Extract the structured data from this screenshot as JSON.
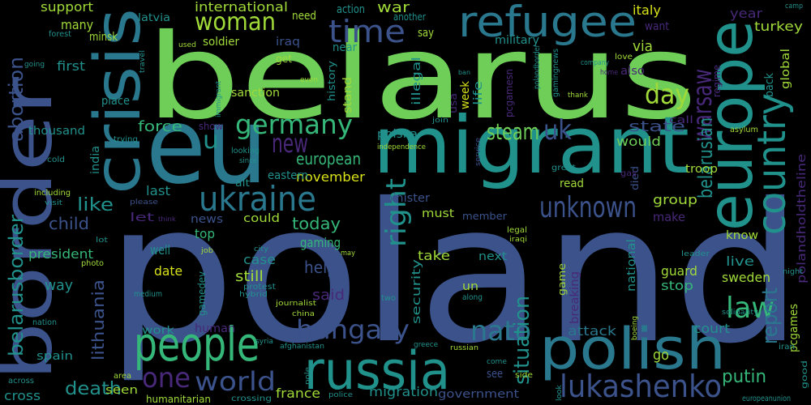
{
  "word_cloud": {
    "words": [
      "poland",
      "belarus",
      "migrant",
      "eu",
      "border",
      "crisis",
      "europe",
      "country",
      "refugee",
      "woman",
      "time",
      "germany",
      "new",
      "u",
      "ukraine",
      "people",
      "russia",
      "polish",
      "hungary",
      "world",
      "one",
      "nato",
      "lukashenko",
      "unknown",
      "day",
      "warsaw",
      "uk",
      "steam",
      "belarusian",
      "law",
      "report",
      "right",
      "situation",
      "belarusborder",
      "abortion",
      "lithuania",
      "putin",
      "death",
      "european",
      "like",
      "child",
      "today",
      "help",
      "said",
      "force",
      "state",
      "would",
      "group",
      "make",
      "guard",
      "stop",
      "sweden",
      "live",
      "know",
      "court",
      "attack",
      "go",
      "date",
      "still",
      "case",
      "gaming",
      "top",
      "news",
      "let",
      "last",
      "could",
      "minister",
      "must",
      "member",
      "november",
      "eastern",
      "well",
      "president",
      "way",
      "thousand",
      "place",
      "first",
      "many",
      "support",
      "minsk",
      "latvia",
      "international",
      "need",
      "action",
      "war",
      "another",
      "say",
      "soldier",
      "iraq",
      "near",
      "get",
      "sanction",
      "military",
      "italy",
      "turkey",
      "want",
      "year",
      "via",
      "also",
      "back",
      "global",
      "polandholdtheline",
      "pcgames",
      "good",
      "europeanunion",
      "iran",
      "asylum",
      "troop",
      "call",
      "died",
      "gas",
      "read",
      "great",
      "leader",
      "national",
      "breaking",
      "game",
      "un",
      "along",
      "next",
      "take",
      "security",
      "migration",
      "government",
      "see",
      "france",
      "crossing",
      "humanitarian",
      "seen",
      "cross",
      "spain",
      "human",
      "work",
      "protest",
      "hybrid",
      "journalist",
      "gamedev",
      "polska",
      "week",
      "usa",
      "life",
      "pcgamesn",
      "illegal",
      "stand",
      "history",
      "regime",
      "polandborder",
      "gamingnews",
      "ban",
      "join",
      "independence",
      "service",
      "camp",
      "love",
      "home",
      "company",
      "used",
      "travel",
      "forest",
      "going",
      "immigrant",
      "even",
      "show",
      "trying",
      "looking",
      "since",
      "alt",
      "cold",
      "india",
      "including",
      "visit",
      "please",
      "think",
      "lot",
      "photo",
      "job",
      "city",
      "may",
      "two",
      "medium",
      "nation",
      "across",
      "area",
      "syria",
      "afghanistan",
      "china",
      "police",
      "pole",
      "greece",
      "russian",
      "come",
      "side",
      "look",
      "legal",
      "iraqi",
      "boeing",
      "solidarity",
      "night",
      "thank"
    ]
  }
}
